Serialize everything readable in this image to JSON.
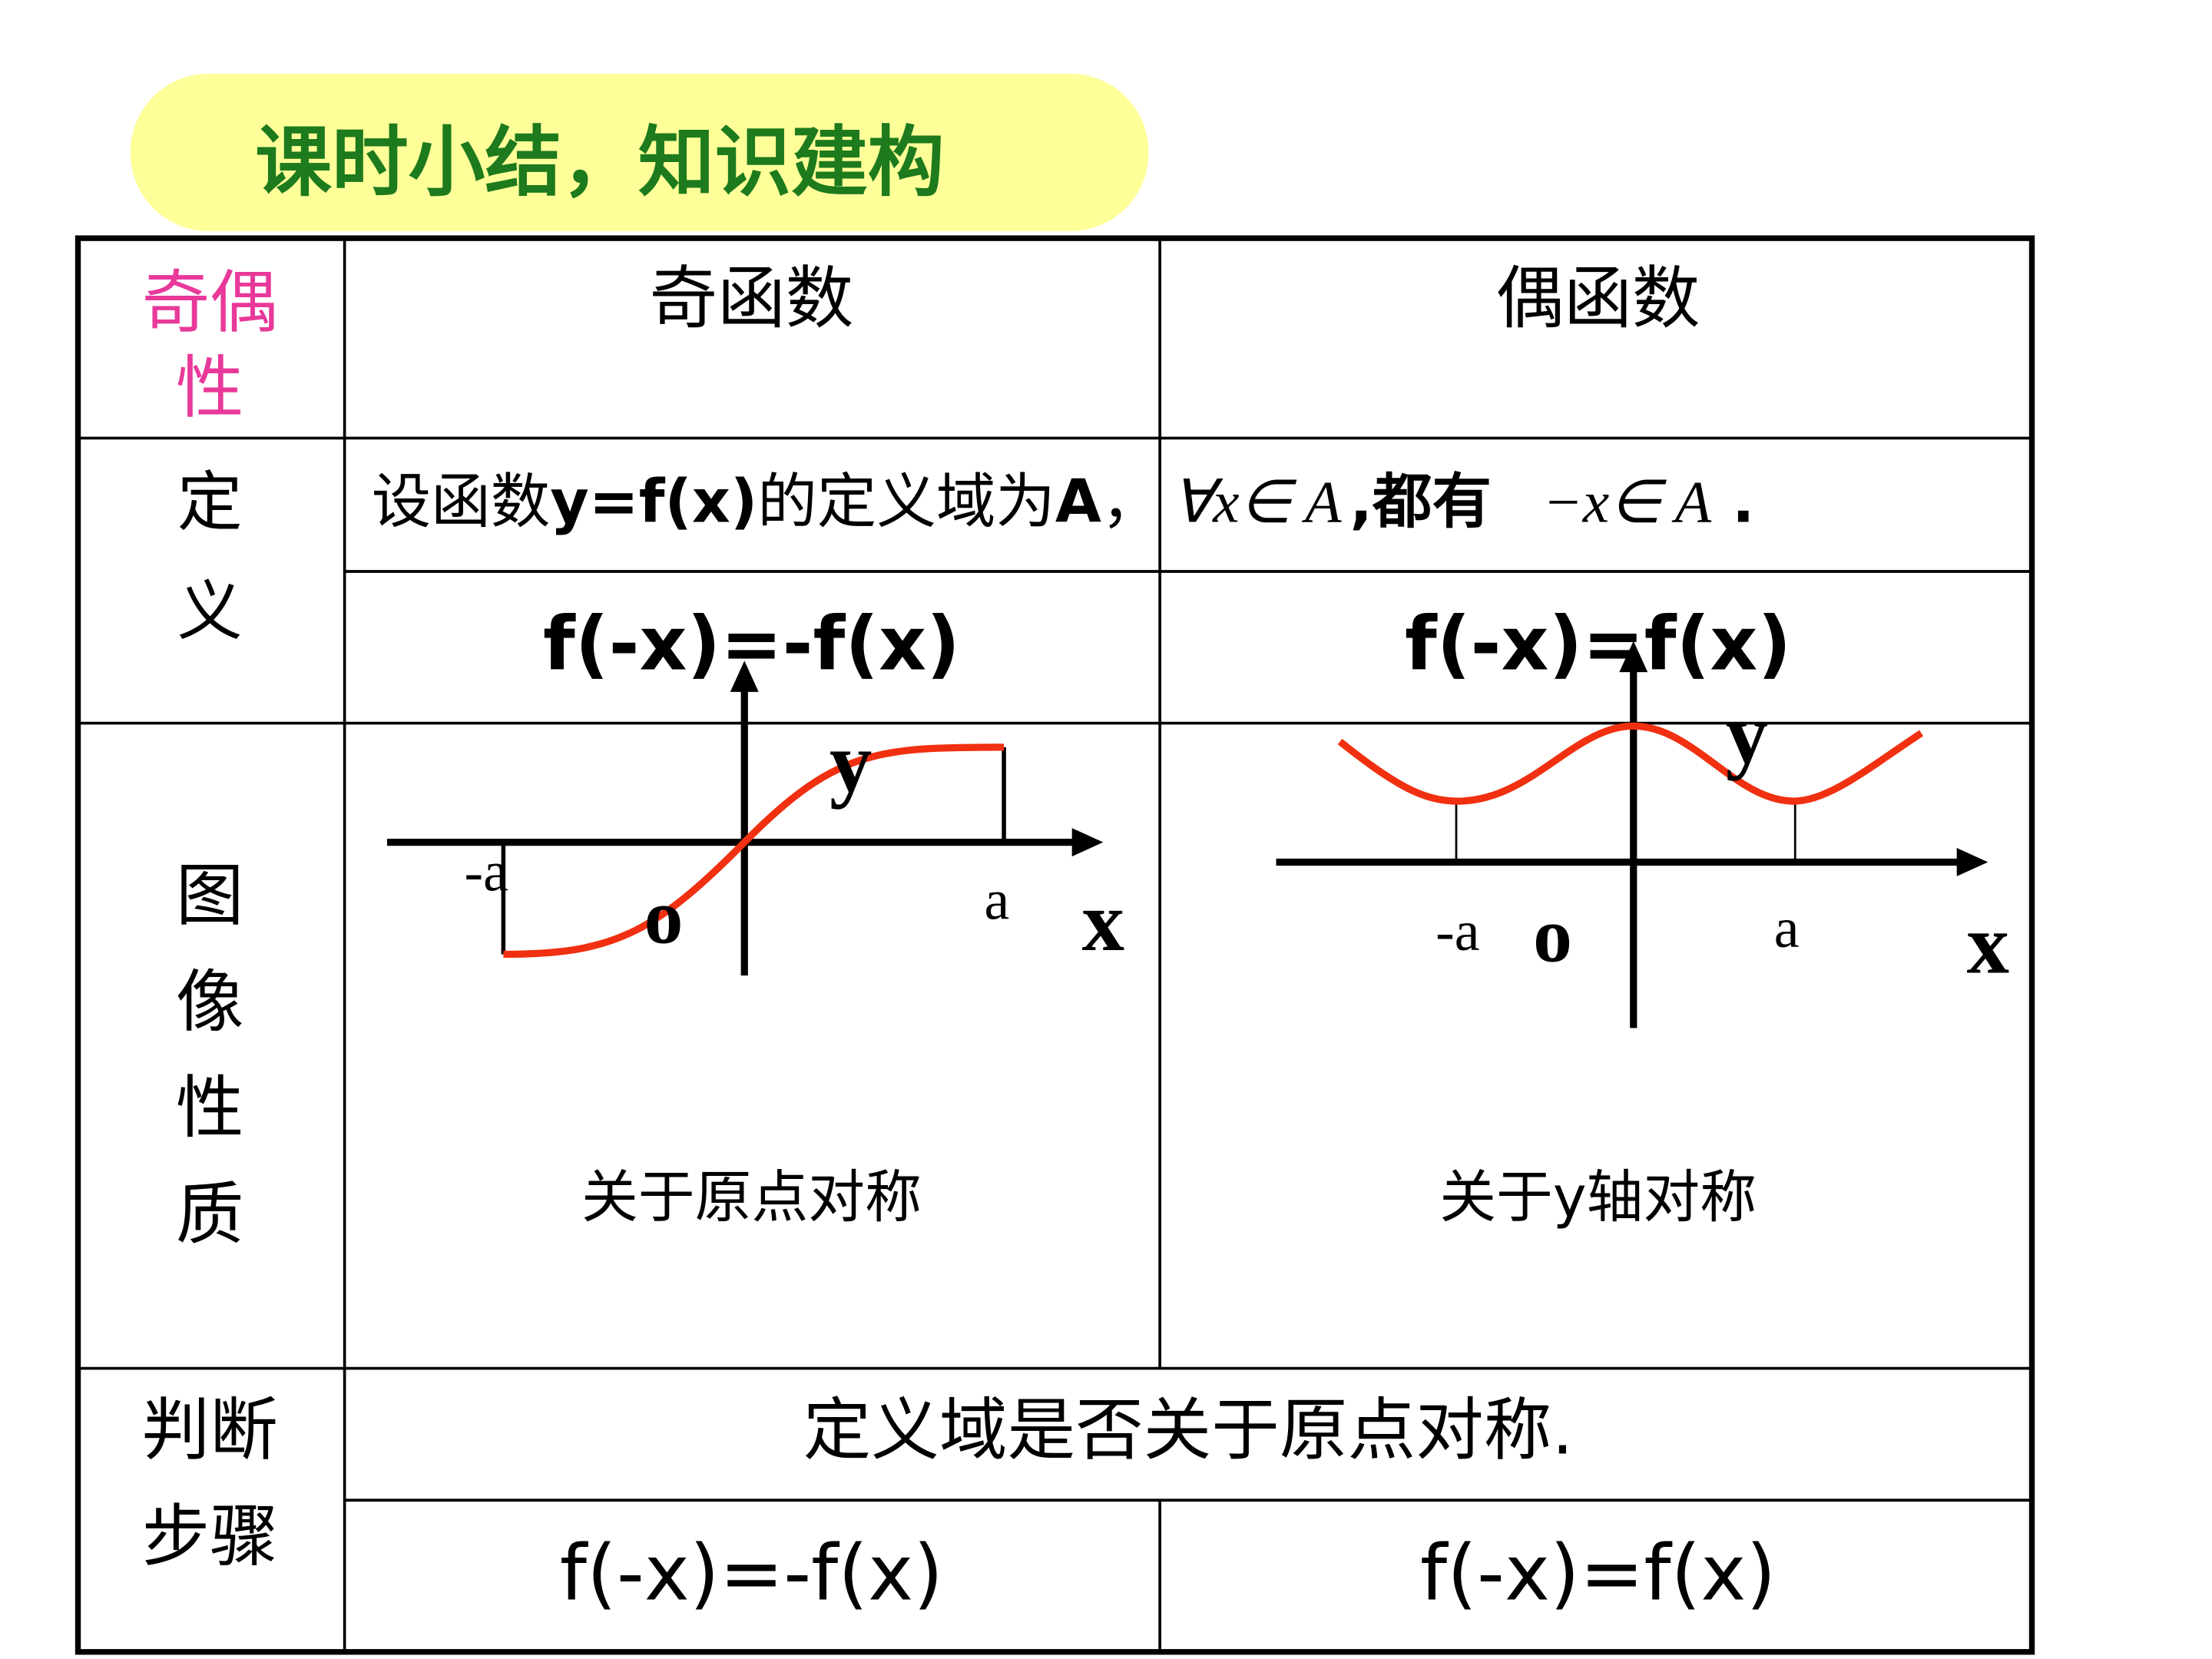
{
  "title": "课时小结，知识建构",
  "table": {
    "header": {
      "label": [
        "奇偶",
        "性"
      ],
      "odd": "奇函数",
      "even": "偶函数"
    },
    "definition": {
      "label": [
        "定",
        "义"
      ],
      "premise": [
        "设函数",
        "y=f(x)",
        "的定义域为",
        "A",
        "，",
        "∀x∈ A",
        ",都有",
        "−x∈ A",
        " ."
      ],
      "odd": "f(-x)=-f(x)",
      "even": "f(-x)=f(x)"
    },
    "graph": {
      "label": [
        "图",
        "像",
        "性",
        "质"
      ],
      "odd": {
        "y": "y",
        "neg_a": "-a",
        "origin": "o",
        "a": "a",
        "x": "x",
        "caption": "关于原点对称"
      },
      "even": {
        "y": "y",
        "neg_a": "-a",
        "origin": "o",
        "a": "a",
        "x": "x",
        "caption": "关于y轴对称"
      }
    },
    "steps": {
      "label": [
        "判断",
        "步骤"
      ],
      "step1": "定义域是否关于原点对称.",
      "odd": "f(-x)=-f(x)",
      "even": "f(-x)=f(x)"
    }
  }
}
